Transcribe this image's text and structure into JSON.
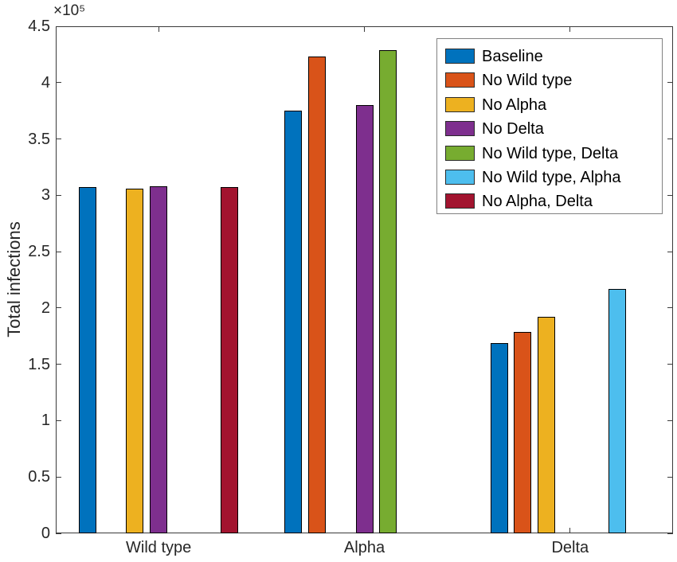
{
  "chart_data": {
    "type": "bar",
    "title": "",
    "xlabel": "",
    "ylabel": "Total infections",
    "y_offset_label": "×10⁵",
    "categories": [
      "Wild type",
      "Alpha",
      "Delta"
    ],
    "series": [
      {
        "name": "Baseline",
        "color": "#0072BD",
        "values": [
          307000,
          375000,
          169000
        ]
      },
      {
        "name": "No Wild type",
        "color": "#D95319",
        "values": [
          0,
          423000,
          179000
        ]
      },
      {
        "name": "No Alpha",
        "color": "#EDB120",
        "values": [
          306000,
          0,
          192000
        ]
      },
      {
        "name": "No Delta",
        "color": "#7E2F8E",
        "values": [
          308000,
          380000,
          0
        ]
      },
      {
        "name": "No Wild type, Delta",
        "color": "#77AC30",
        "values": [
          0,
          429000,
          0
        ]
      },
      {
        "name": "No Wild type, Alpha",
        "color": "#4DBEEE",
        "values": [
          0,
          0,
          217000
        ]
      },
      {
        "name": "No Alpha, Delta",
        "color": "#A2142F",
        "values": [
          307000,
          0,
          0
        ]
      }
    ],
    "ylim": [
      0,
      450000
    ],
    "ytick_values": [
      0,
      50000,
      100000,
      150000,
      200000,
      250000,
      300000,
      350000,
      400000,
      450000
    ],
    "ytick_labels": [
      "0",
      "0.5",
      "1",
      "1.5",
      "2",
      "2.5",
      "3",
      "3.5",
      "4",
      "4.5"
    ],
    "legend_position": "top-right",
    "grid": false,
    "axis_color": "#3a3a3a",
    "bar_edge_color": "#000000",
    "background_color": "#ffffff"
  }
}
